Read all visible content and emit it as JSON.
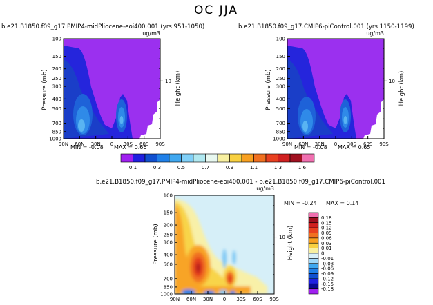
{
  "chart_data": {
    "title": "OC JJA",
    "panels": [
      {
        "type": "heatmap",
        "title": "b.e21.B1850.f09_g17.PMIP4-midPliocene-eoi400.001 (yrs 951-1050)",
        "units": "ug/m3",
        "ylabel": "Pressure (mb)",
        "ylabel_right": "Height (km)",
        "height_tick": "10",
        "x_ticks": [
          "90N",
          "60N",
          "30N",
          "0",
          "30S",
          "60S",
          "90S"
        ],
        "y_ticks": [
          "100",
          "150",
          "200",
          "250",
          "300",
          "400",
          "500",
          "700",
          "850",
          "1000"
        ],
        "min_label": "MIN = -0.08",
        "max_label": "MAX = 0.66",
        "min": -0.08,
        "max": 0.66
      },
      {
        "type": "heatmap",
        "title": "b.e21.B1850.f09_g17.CMIP6-piControl.001 (yrs 1150-1199)",
        "units": "ug/m3",
        "ylabel": "Pressure (mb)",
        "ylabel_right": "Height (km)",
        "height_tick": "10",
        "x_ticks": [
          "90N",
          "60N",
          "30N",
          "0",
          "30S",
          "60S",
          "90S"
        ],
        "y_ticks": [
          "100",
          "150",
          "200",
          "250",
          "300",
          "400",
          "500",
          "700",
          "850",
          "1000"
        ],
        "min_label": "MIN = -0.08",
        "max_label": "MAX = 0.65",
        "min": -0.08,
        "max": 0.65
      },
      {
        "type": "heatmap",
        "title": "b.e21.B1850.f09_g17.PMIP4-midPliocene-eoi400.001 - b.e21.B1850.f09_g17.CMIP6-piControl.001",
        "units": "ug/m3",
        "ylabel": "Pressure (mb)",
        "ylabel_right": "Height (km)",
        "height_tick": "10",
        "x_ticks": [
          "90N",
          "60N",
          "30N",
          "0",
          "30S",
          "60S",
          "90S"
        ],
        "y_ticks": [
          "100",
          "150",
          "200",
          "250",
          "300",
          "400",
          "500",
          "700",
          "850",
          "1000"
        ],
        "min_label": "MIN = -0.24",
        "max_label": "MAX = 0.14",
        "min": -0.24,
        "max": 0.14
      }
    ],
    "colorbar_top": {
      "labels": [
        "0.1",
        "0.3",
        "0.5",
        "0.7",
        "0.9",
        "1.1",
        "1.3",
        "1.6"
      ],
      "colors": [
        "#a020f0",
        "#2020e0",
        "#1050d0",
        "#2080e8",
        "#40a8f0",
        "#80d0f8",
        "#b0e8f0",
        "#e8f8f0",
        "#f8f0a0",
        "#f8d040",
        "#f8a020",
        "#f07020",
        "#e84020",
        "#d02020",
        "#a01020",
        "#f070b0"
      ]
    },
    "colorbar_diff": {
      "labels": [
        "0.18",
        "0.15",
        "0.12",
        "0.09",
        "0.06",
        "0.03",
        "0.01",
        "0",
        "-0.01",
        "-0.03",
        "-0.06",
        "-0.09",
        "-0.12",
        "-0.15",
        "-0.18"
      ],
      "colors": [
        "#f070b0",
        "#a01020",
        "#d02020",
        "#e84020",
        "#f07020",
        "#f8a020",
        "#f8d040",
        "#f8f0a0",
        "#d8f0f8",
        "#a0d8f8",
        "#40a8f0",
        "#2080e8",
        "#1050d0",
        "#2020e0",
        "#0a0a90",
        "#a020f0"
      ]
    }
  }
}
